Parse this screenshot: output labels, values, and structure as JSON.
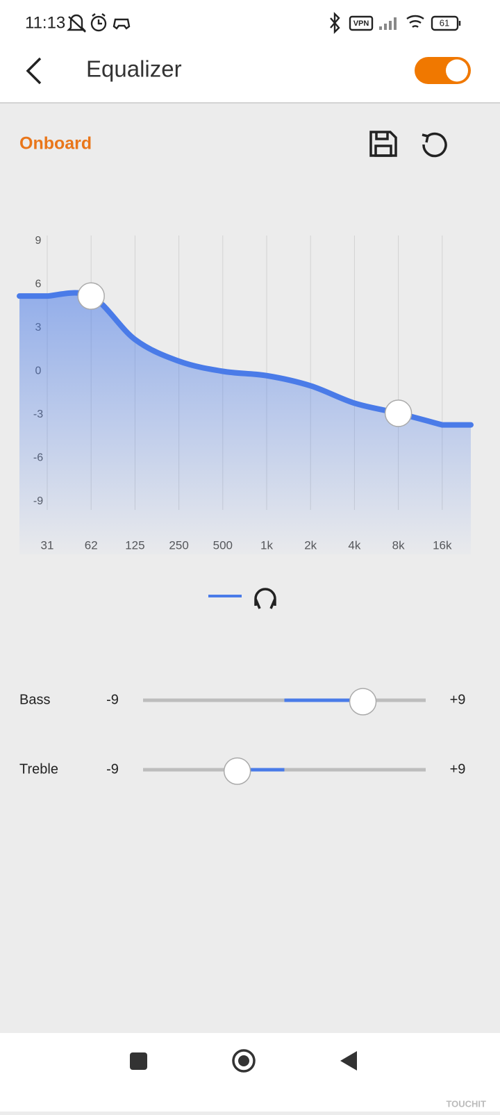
{
  "status_bar": {
    "time": "11:13",
    "vpn": "VPN",
    "battery": "61"
  },
  "header": {
    "title": "Equalizer",
    "enabled": true
  },
  "preset": "Onboard",
  "chart_data": {
    "type": "line",
    "categories": [
      "31",
      "62",
      "125",
      "250",
      "500",
      "1k",
      "2k",
      "4k",
      "8k",
      "16k"
    ],
    "series": [
      {
        "color": "#4a7be8",
        "values": [
          5.2,
          5.2,
          2.2,
          0.7,
          0,
          -0.3,
          -1,
          -2.2,
          -2.9,
          -3.7
        ]
      }
    ],
    "ylim": [
      -9,
      9
    ],
    "yticks": [
      9,
      6,
      3,
      0,
      -3,
      -6,
      -9
    ],
    "grid": true
  },
  "sliders": [
    {
      "label": "Bass",
      "min": -9,
      "max": {
        "value": 9,
        "label": "+9"
      },
      "value": 5
    },
    {
      "label": "Treble",
      "min": -9,
      "max": {
        "value": 9,
        "label": "+9"
      },
      "value": -3
    }
  ],
  "watermark": "TOUCHIT"
}
